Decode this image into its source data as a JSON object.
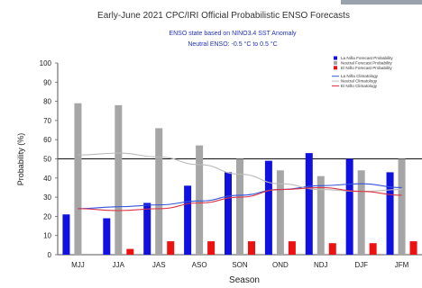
{
  "chart_data": {
    "type": "bar",
    "title": "Early-June 2021 CPC/IRI Official Probabilistic ENSO Forecasts",
    "subtitle_lines": [
      "ENSO state based on NINO3.4 SST Anomaly",
      "Neutral ENSO: -0.5 °C to 0.5 °C"
    ],
    "xlabel": "Season",
    "ylabel": "Probability (%)",
    "ylim": [
      0,
      100
    ],
    "yticks": [
      0,
      10,
      20,
      30,
      40,
      50,
      60,
      70,
      80,
      90,
      100
    ],
    "reference_line": 50,
    "categories": [
      "MJJ",
      "JJA",
      "JAS",
      "ASO",
      "SON",
      "OND",
      "NDJ",
      "DJF",
      "JFM"
    ],
    "series": [
      {
        "name": "La Niña Forecast Probability",
        "color": "#1010e0",
        "values": [
          21,
          19,
          27,
          36,
          43,
          49,
          53,
          50,
          43
        ]
      },
      {
        "name": "Neutral Forecast Probability",
        "color": "#a6a6a6",
        "values": [
          79,
          78,
          66,
          57,
          50,
          44,
          41,
          44,
          50
        ]
      },
      {
        "name": "El Niño Forecast Probability",
        "color": "#ee1111",
        "values": [
          0,
          3,
          7,
          7,
          7,
          7,
          6,
          6,
          7
        ]
      }
    ],
    "climatology": [
      {
        "name": "La Niña Climatology",
        "color": "#3355dd",
        "values": [
          24,
          25,
          26,
          28,
          31,
          34,
          36,
          37,
          35
        ]
      },
      {
        "name": "Neutral Climatology",
        "color": "#bbbbbb",
        "values": [
          52,
          53,
          51,
          47,
          42,
          37,
          34,
          33,
          34
        ]
      },
      {
        "name": "El Niño Climatology",
        "color": "#dd3344",
        "values": [
          24,
          23,
          24,
          27,
          30,
          34,
          35,
          33,
          31
        ]
      }
    ],
    "legend_position": "top-right",
    "grid": false
  }
}
